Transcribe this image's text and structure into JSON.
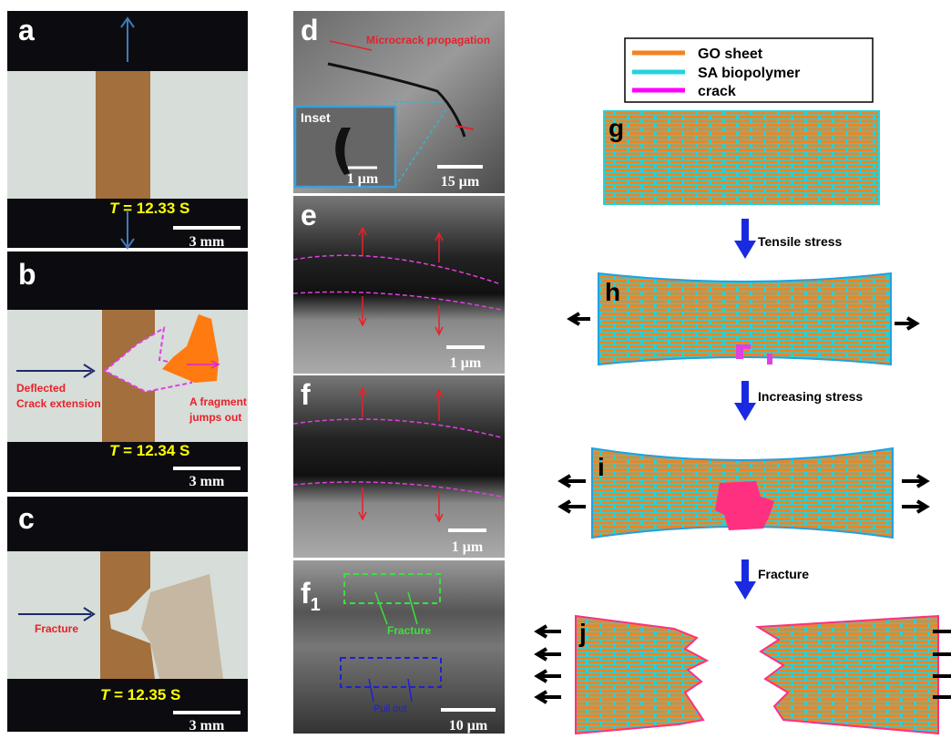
{
  "left_panels": [
    {
      "label": "a",
      "time_variable": "T",
      "time_value": "= 12.33 S",
      "scale_bar": "3 mm"
    },
    {
      "label": "b",
      "time_variable": "T",
      "time_value": "= 12.34 S",
      "scale_bar": "3 mm",
      "notes": [
        "Deflected",
        "Crack extension",
        "A fragment",
        "jumps out"
      ]
    },
    {
      "label": "c",
      "time_variable": "T",
      "time_value": "= 12.35 S",
      "scale_bar": "3 mm",
      "notes": [
        "Fracture"
      ]
    }
  ],
  "middle_panels": [
    {
      "label": "d",
      "notes": [
        "Microcrack propagation"
      ],
      "inset_label": "Inset",
      "inset_scale": "1 μm",
      "scale_bar": "15 μm"
    },
    {
      "label": "e",
      "scale_bar": "1 μm"
    },
    {
      "label": "f",
      "scale_bar": "1 μm"
    },
    {
      "label": "f",
      "subscript": "1",
      "notes": [
        "Fracture",
        "Pull out"
      ],
      "scale_bar": "10 μm"
    }
  ],
  "legend": [
    {
      "name": "GO sheet",
      "color": "#f5821f"
    },
    {
      "name": "SA biopolymer",
      "color": "#22d3dc"
    },
    {
      "name": "crack",
      "color": "#ff00ff"
    }
  ],
  "schematic": {
    "labels": [
      "g",
      "h",
      "i",
      "j"
    ],
    "steps": [
      "Tensile stress",
      "Increasing stress",
      "Fracture"
    ]
  }
}
